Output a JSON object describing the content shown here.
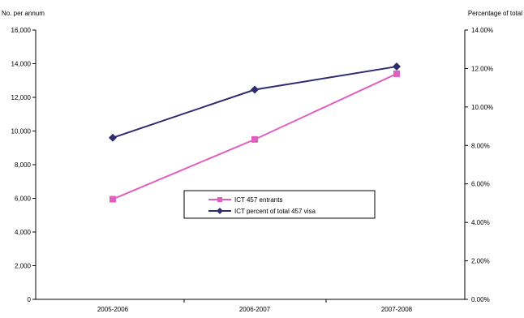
{
  "chart_data": {
    "type": "line",
    "categories": [
      "2005-2006",
      "2006-2007",
      "2007-2008"
    ],
    "left_axis_title": "No. per annum",
    "right_axis_title": "Percentage of total",
    "left_ticks": [
      "0",
      "2,000",
      "4,000",
      "6,000",
      "8,000",
      "10,000",
      "12,000",
      "14,000",
      "16,000"
    ],
    "right_ticks": [
      "0.00%",
      "2.00%",
      "4.00%",
      "6.00%",
      "8.00%",
      "10.00%",
      "12.00%",
      "14.00%"
    ],
    "ylim_left": [
      0,
      16000
    ],
    "ylim_right": [
      0,
      14
    ],
    "grid": false,
    "legend_position": "center",
    "series": [
      {
        "name": "ICT 457 entrants",
        "axis": "left",
        "color": "#e060c0",
        "marker": "square",
        "values": [
          5950,
          9500,
          13400
        ]
      },
      {
        "name": "ICT percent of total 457 visa",
        "axis": "right",
        "color": "#2e2b6e",
        "marker": "diamond",
        "values": [
          8.4,
          10.9,
          12.1
        ]
      }
    ]
  }
}
